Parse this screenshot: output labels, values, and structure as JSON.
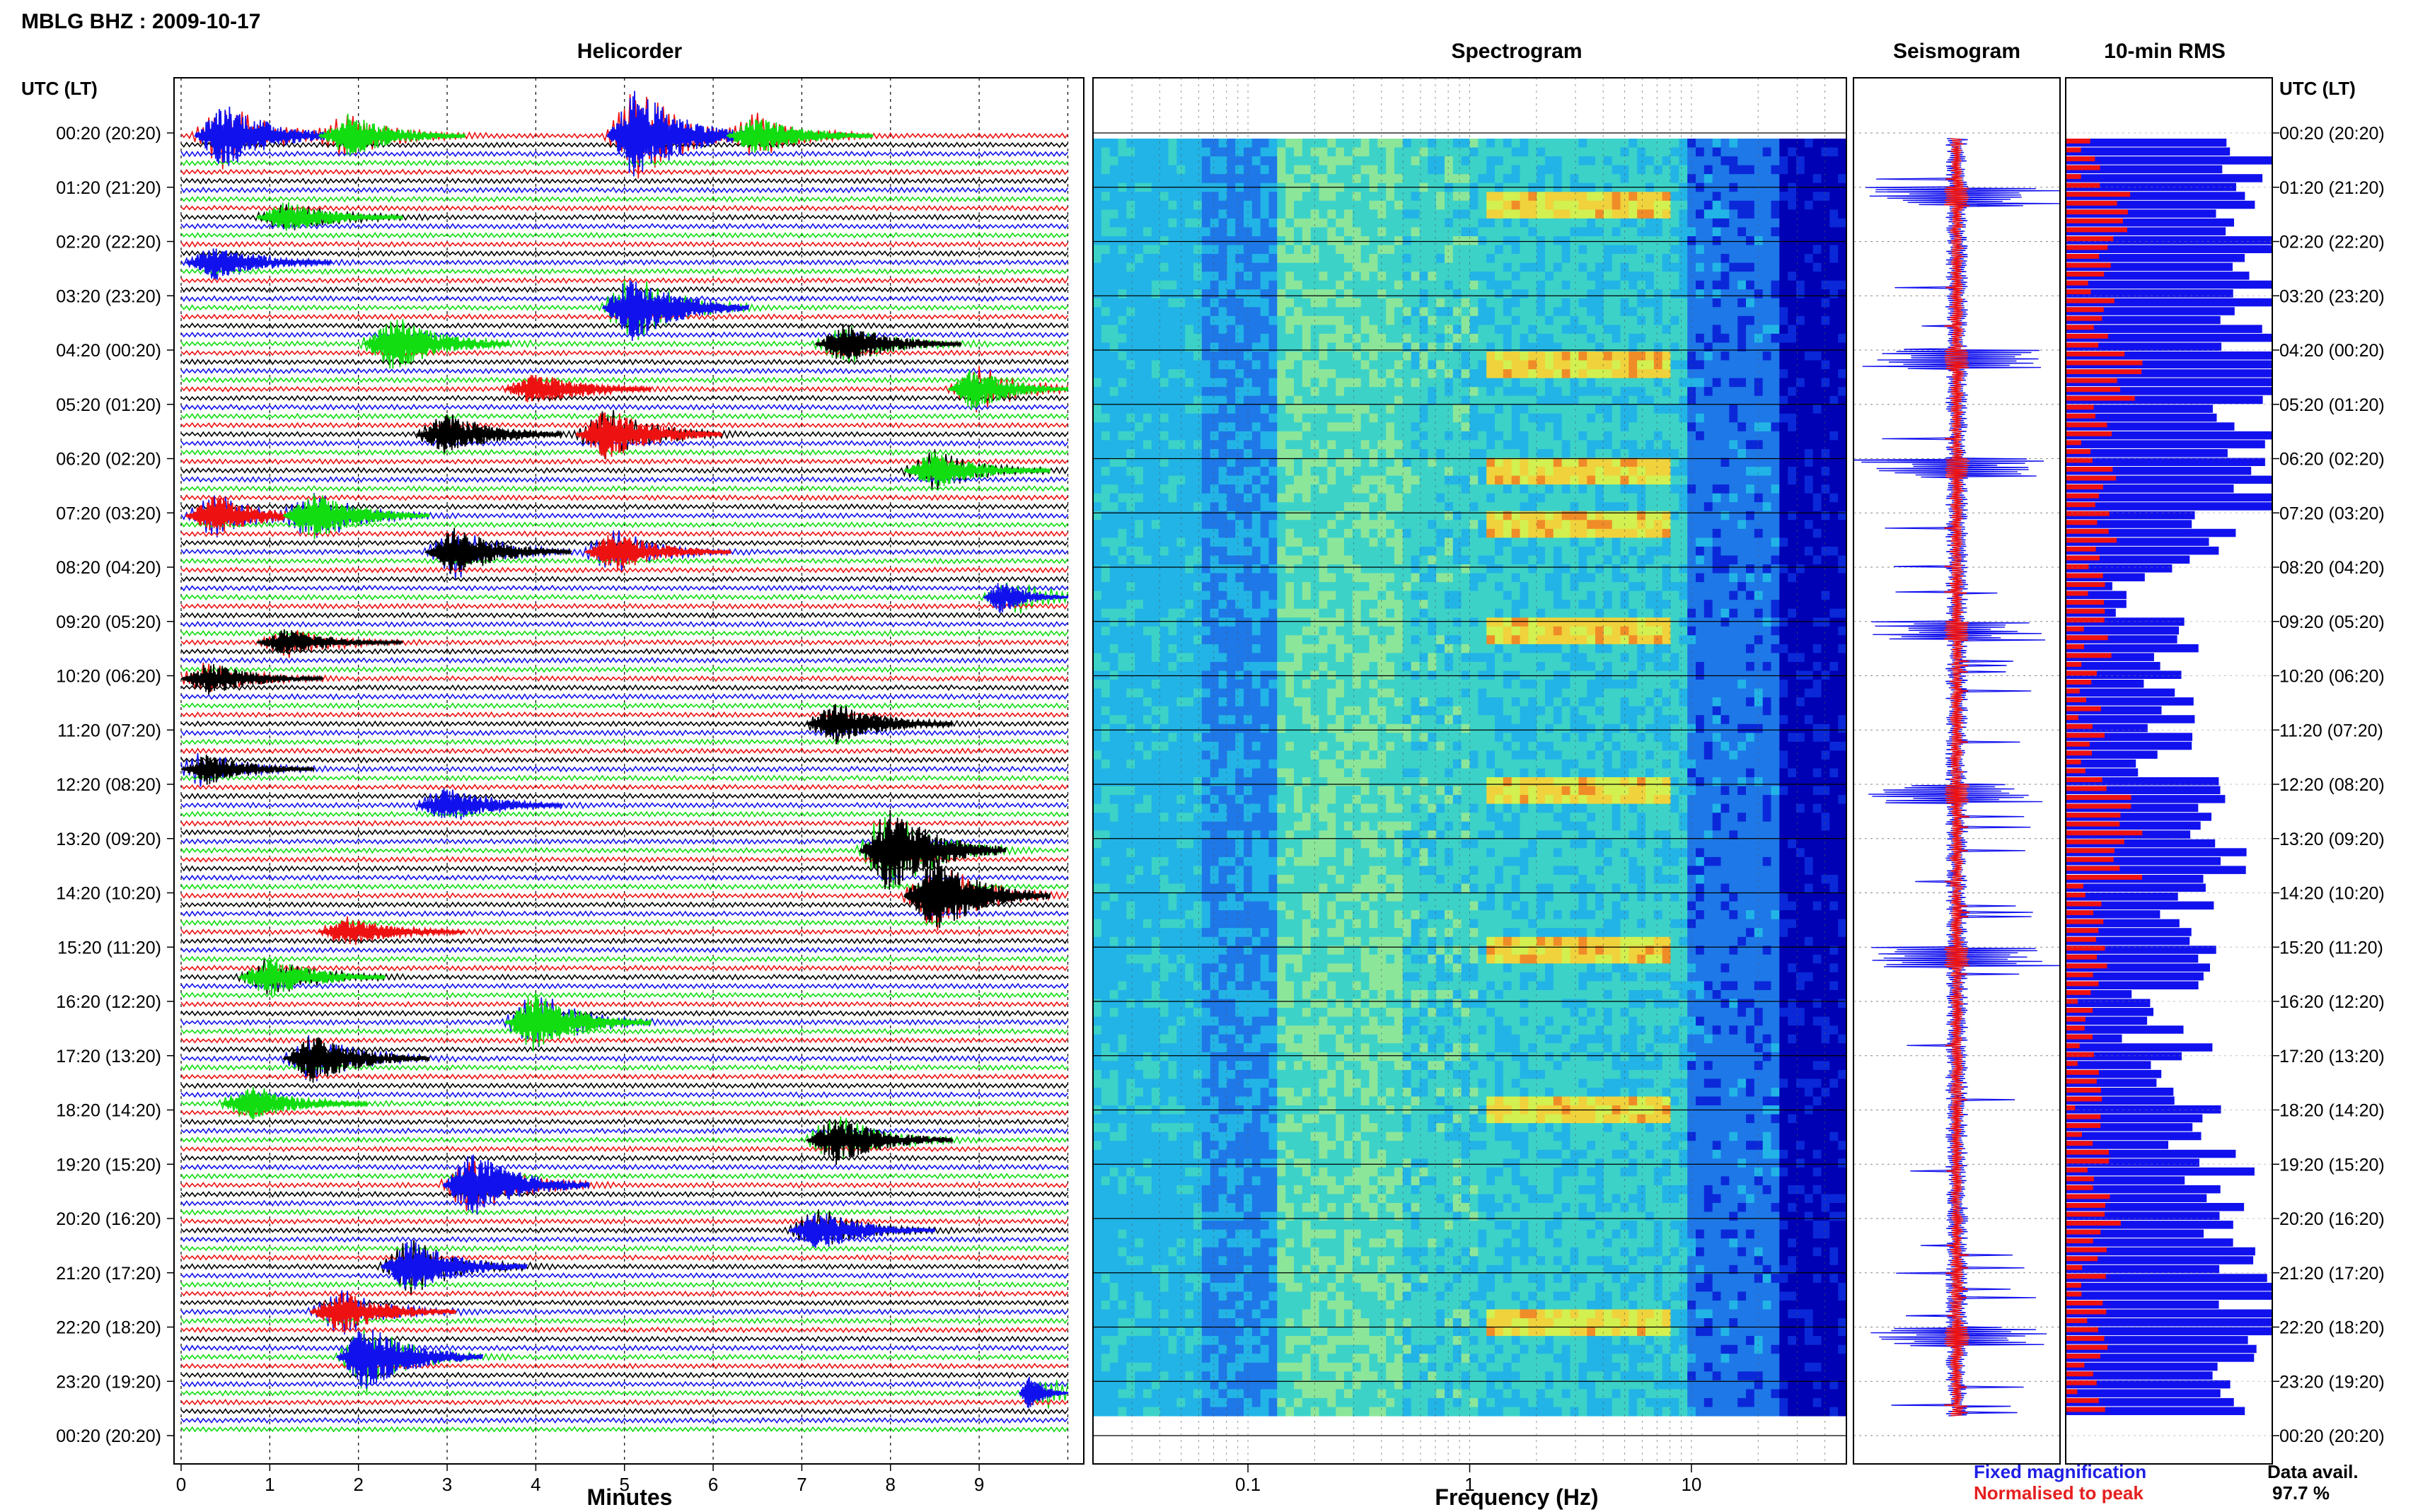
{
  "header": {
    "title": "MBLG BHZ : 2009-10-17",
    "time_axis_label_left": "UTC (LT)",
    "time_axis_label_right": "UTC (LT)"
  },
  "panels": {
    "helicorder": {
      "title": "Helicorder",
      "xlabel": "Minutes"
    },
    "spectrogram": {
      "title": "Spectrogram",
      "xlabel": "Frequency (Hz)"
    },
    "seismogram": {
      "title": "Seismogram"
    },
    "rms": {
      "title": "10-min RMS"
    }
  },
  "legend": {
    "fixed_magnification": "Fixed magnification",
    "normalised_to_peak": "Normalised to peak",
    "fixed_color": "#1f1fe6",
    "normalised_color": "#e61f1f"
  },
  "data_availability": {
    "label": "Data avail.",
    "value": "97.7 %"
  },
  "colors": {
    "trace_black": "#000000",
    "trace_red": "#ee1111",
    "trace_blue": "#1111ee",
    "trace_green": "#11dd11"
  },
  "chart_data": [
    {
      "type": "line",
      "panel": "helicorder",
      "xlabel": "Minutes",
      "xlim": [
        0,
        10
      ],
      "x_ticks": [
        "0",
        "1",
        "2",
        "3",
        "4",
        "5",
        "6",
        "7",
        "8",
        "9"
      ],
      "y_tick_labels": [
        "00:20 (20:20)",
        "01:20 (21:20)",
        "02:20 (22:20)",
        "03:20 (23:20)",
        "04:20 (00:20)",
        "05:20 (01:20)",
        "06:20 (02:20)",
        "07:20 (03:20)",
        "08:20 (04:20)",
        "09:20 (05:20)",
        "10:20 (06:20)",
        "11:20 (07:20)",
        "12:20 (08:20)",
        "13:20 (09:20)",
        "14:20 (10:20)",
        "15:20 (11:20)",
        "16:20 (12:20)",
        "17:20 (13:20)",
        "18:20 (14:20)",
        "19:20 (15:20)",
        "20:20 (16:20)",
        "21:20 (17:20)",
        "22:20 (18:20)",
        "23:20 (19:20)",
        "00:20 (20:20)"
      ],
      "trace_color_cycle": [
        "red",
        "black",
        "blue",
        "green"
      ],
      "events": [
        {
          "row": 0,
          "minute": 0.5,
          "color": "blue",
          "amp": 2.5
        },
        {
          "row": 0,
          "minute": 1.9,
          "color": "green",
          "amp": 1.6
        },
        {
          "row": 0,
          "minute": 5.15,
          "color": "blue",
          "amp": 3.5
        },
        {
          "row": 0,
          "minute": 6.5,
          "color": "green",
          "amp": 1.5
        },
        {
          "row": 2,
          "minute": 1.2,
          "color": "green",
          "amp": 1.2
        },
        {
          "row": 3,
          "minute": 0.4,
          "color": "blue",
          "amp": 1.2
        },
        {
          "row": 4,
          "minute": 5.1,
          "color": "blue",
          "amp": 2.5
        },
        {
          "row": 5,
          "minute": 7.5,
          "color": "black",
          "amp": 1.5
        },
        {
          "row": 5,
          "minute": 2.4,
          "color": "green",
          "amp": 2.0
        },
        {
          "row": 6,
          "minute": 4.0,
          "color": "red",
          "amp": 1.2
        },
        {
          "row": 6,
          "minute": 9.0,
          "color": "green",
          "amp": 1.6
        },
        {
          "row": 7,
          "minute": 3.0,
          "color": "black",
          "amp": 1.5
        },
        {
          "row": 7,
          "minute": 4.8,
          "color": "red",
          "amp": 2.0
        },
        {
          "row": 8,
          "minute": 8.5,
          "color": "green",
          "amp": 1.4
        },
        {
          "row": 9,
          "minute": 0.4,
          "color": "red",
          "amp": 1.5
        },
        {
          "row": 9,
          "minute": 1.5,
          "color": "green",
          "amp": 1.8
        },
        {
          "row": 10,
          "minute": 3.1,
          "color": "black",
          "amp": 1.8
        },
        {
          "row": 10,
          "minute": 4.9,
          "color": "red",
          "amp": 1.5
        },
        {
          "row": 11,
          "minute": 9.4,
          "color": "blue",
          "amp": 1.2
        },
        {
          "row": 12,
          "minute": 1.2,
          "color": "black",
          "amp": 1.0
        },
        {
          "row": 13,
          "minute": 0.3,
          "color": "black",
          "amp": 1.2
        },
        {
          "row": 14,
          "minute": 7.4,
          "color": "black",
          "amp": 1.5
        },
        {
          "row": 15,
          "minute": 0.2,
          "color": "black",
          "amp": 1.2
        },
        {
          "row": 16,
          "minute": 3.0,
          "color": "blue",
          "amp": 1.3
        },
        {
          "row": 17,
          "minute": 8.0,
          "color": "black",
          "amp": 3.2
        },
        {
          "row": 18,
          "minute": 8.5,
          "color": "black",
          "amp": 2.8
        },
        {
          "row": 19,
          "minute": 1.9,
          "color": "red",
          "amp": 1.0
        },
        {
          "row": 20,
          "minute": 1.0,
          "color": "green",
          "amp": 1.5
        },
        {
          "row": 21,
          "minute": 4.0,
          "color": "green",
          "amp": 2.2
        },
        {
          "row": 22,
          "minute": 1.5,
          "color": "black",
          "amp": 1.8
        },
        {
          "row": 23,
          "minute": 0.8,
          "color": "green",
          "amp": 1.2
        },
        {
          "row": 24,
          "minute": 7.4,
          "color": "black",
          "amp": 1.8
        },
        {
          "row": 25,
          "minute": 3.3,
          "color": "blue",
          "amp": 2.5
        },
        {
          "row": 26,
          "minute": 7.2,
          "color": "blue",
          "amp": 1.5
        },
        {
          "row": 27,
          "minute": 2.6,
          "color": "blue",
          "amp": 2.0
        },
        {
          "row": 28,
          "minute": 1.8,
          "color": "red",
          "amp": 1.6
        },
        {
          "row": 29,
          "minute": 2.1,
          "color": "blue",
          "amp": 2.4
        },
        {
          "row": 30,
          "minute": 9.8,
          "color": "blue",
          "amp": 1.2
        }
      ]
    },
    {
      "type": "heatmap",
      "panel": "spectrogram",
      "xlabel": "Frequency (Hz)",
      "x_scale": "log",
      "xlim": [
        0.02,
        50
      ],
      "x_ticks": [
        0.1,
        1,
        10
      ],
      "x_tick_labels": [
        "0.1",
        "1",
        "10"
      ],
      "colormap": [
        "#0000b4",
        "#0a28d8",
        "#1e78e8",
        "#22b4e6",
        "#3cd2c8",
        "#8ce69a",
        "#d2f050",
        "#f0d23c",
        "#f08c28"
      ],
      "energy_bands_hz": [
        [
          1.2,
          8
        ]
      ],
      "high_energy_hours": [
        "01:20",
        "04:20",
        "06:20",
        "07:20",
        "09:20",
        "12:20",
        "15:20",
        "18:20",
        "22:20"
      ]
    },
    {
      "type": "line",
      "panel": "seismogram",
      "series": [
        {
          "name": "Fixed magnification",
          "color": "blue"
        },
        {
          "name": "Normalised to peak",
          "color": "red"
        }
      ],
      "large_amplitude_hours": [
        "01:20",
        "04:20",
        "06:20",
        "09:20",
        "12:20",
        "15:20",
        "22:20"
      ]
    },
    {
      "type": "bar",
      "panel": "10-min RMS",
      "orientation": "horizontal",
      "xlim": [
        0,
        1
      ],
      "series": [
        {
          "name": "Fixed magnification",
          "color": "blue"
        },
        {
          "name": "Normalised to peak",
          "color": "red"
        }
      ],
      "fixed_values_by_hour": [
        0.85,
        0.9,
        0.95,
        0.92,
        1.0,
        0.85,
        0.95,
        0.7,
        0.35,
        0.55,
        0.5,
        0.45,
        0.8,
        0.75,
        0.55,
        0.6,
        0.4,
        0.55,
        0.6,
        0.75,
        0.8,
        0.9,
        0.95,
        0.85
      ],
      "red_values_by_hour": [
        0.1,
        0.3,
        0.15,
        0.2,
        0.3,
        0.15,
        0.2,
        0.2,
        0.12,
        0.15,
        0.1,
        0.12,
        0.25,
        0.3,
        0.12,
        0.2,
        0.1,
        0.1,
        0.12,
        0.15,
        0.2,
        0.15,
        0.15,
        0.12
      ]
    }
  ]
}
